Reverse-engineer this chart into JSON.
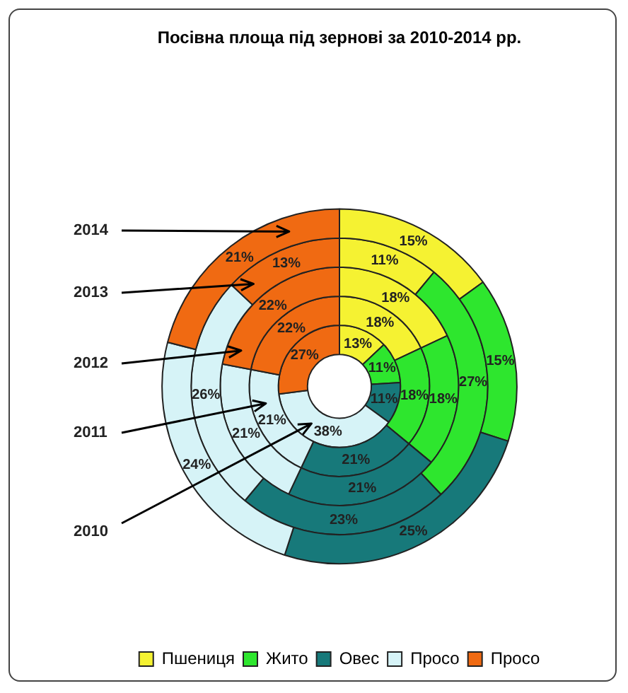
{
  "chart_data": {
    "type": "donut",
    "title": "Посівна площа під зернові за 2010-2014 рр.",
    "categories": [
      "Пшениця",
      "Жито",
      "Овес",
      "Просо",
      "Просо"
    ],
    "colors": [
      "#f5f232",
      "#2ee62e",
      "#17797a",
      "#d6f3f7",
      "#f06a12"
    ],
    "series": [
      {
        "name": "2010",
        "values": [
          13,
          11,
          11,
          38,
          27
        ],
        "value_labels": [
          "13%",
          "11%",
          "11%",
          "38%",
          "27%"
        ]
      },
      {
        "name": "2011",
        "values": [
          18,
          18,
          21,
          21,
          22
        ],
        "value_labels": [
          "18%",
          "18%",
          "21%",
          "21%",
          "22%"
        ]
      },
      {
        "name": "2012",
        "values": [
          18,
          18,
          21,
          21,
          22
        ],
        "value_labels": [
          "18%",
          "18%",
          "21%",
          "21%",
          "22%"
        ]
      },
      {
        "name": "2013",
        "values": [
          11,
          27,
          23,
          26,
          13
        ],
        "value_labels": [
          "11%",
          "27%",
          "23%",
          "26%",
          "13%"
        ]
      },
      {
        "name": "2014",
        "values": [
          15,
          15,
          25,
          24,
          21
        ],
        "value_labels": [
          "15%",
          "15%",
          "25%",
          "24%",
          "21%"
        ]
      }
    ],
    "legend": "bottom"
  }
}
